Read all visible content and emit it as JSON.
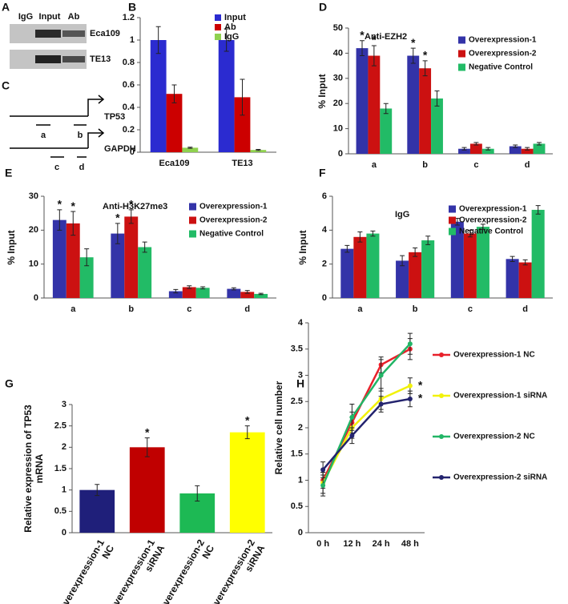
{
  "panel_a": {
    "label": "A",
    "columns": [
      "IgG",
      "Input",
      "Ab"
    ],
    "rows": [
      "Eca109",
      "TE13"
    ]
  },
  "panel_c": {
    "label": "C",
    "genes": [
      {
        "name": "TP53",
        "regions": [
          "a",
          "b"
        ]
      },
      {
        "name": "GAPDH",
        "regions": [
          "c",
          "d"
        ]
      }
    ]
  },
  "chart_data": [
    {
      "type": "bar",
      "panel": "B",
      "categories": [
        "Eca109",
        "TE13"
      ],
      "series": [
        {
          "name": "Input",
          "color": "#2b2bd0",
          "values": [
            1,
            1
          ],
          "errors": [
            0.12,
            0.1
          ]
        },
        {
          "name": "Ab",
          "color": "#cc0000",
          "values": [
            0.52,
            0.49
          ],
          "errors": [
            0.08,
            0.16
          ]
        },
        {
          "name": "IgG",
          "color": "#8fd14f",
          "values": [
            0.04,
            0.02
          ],
          "errors": [
            0.005,
            0.005
          ]
        }
      ],
      "ylim": [
        0,
        1.2
      ],
      "yticks": [
        0,
        0.2,
        0.4,
        0.6,
        0.8,
        1,
        1.2
      ],
      "legend": "upper right"
    },
    {
      "type": "bar",
      "panel": "D",
      "title": "Anti-EZH2",
      "ylabel": "% Input",
      "categories": [
        "a",
        "b",
        "c",
        "d"
      ],
      "series": [
        {
          "name": "Overexpression-1",
          "color": "#3333a8",
          "values": [
            42,
            39,
            2,
            3
          ],
          "errors": [
            3,
            3,
            0.5,
            0.5
          ],
          "significance": [
            "*",
            "*",
            null,
            null
          ]
        },
        {
          "name": "Overexpression-2",
          "color": "#cc1111",
          "values": [
            39,
            34,
            4,
            2
          ],
          "errors": [
            4,
            3,
            0.5,
            0.5
          ],
          "significance": [
            "*",
            "*",
            null,
            null
          ]
        },
        {
          "name": "Negative Control",
          "color": "#22bb66",
          "values": [
            18,
            22,
            2,
            4
          ],
          "errors": [
            2,
            3,
            0.5,
            0.5
          ]
        }
      ],
      "ylim": [
        0,
        50
      ],
      "yticks": [
        0,
        10,
        20,
        30,
        40,
        50
      ],
      "legend": "upper right"
    },
    {
      "type": "bar",
      "panel": "E",
      "title": "Anti-H3K27me3",
      "ylabel": "% Input",
      "categories": [
        "a",
        "b",
        "c",
        "d"
      ],
      "series": [
        {
          "name": "Overexpression-1",
          "color": "#3333a8",
          "values": [
            23,
            19,
            2,
            2.7
          ],
          "errors": [
            3,
            3,
            0.5,
            0.3
          ],
          "significance": [
            "*",
            "*",
            null,
            null
          ]
        },
        {
          "name": "Overexpression-2",
          "color": "#cc1111",
          "values": [
            22,
            24,
            3.2,
            1.8
          ],
          "errors": [
            3.5,
            2,
            0.4,
            0.4
          ],
          "significance": [
            "*",
            "*",
            null,
            null
          ]
        },
        {
          "name": "Negative Control",
          "color": "#22bb66",
          "values": [
            12,
            15,
            3,
            1.2
          ],
          "errors": [
            2.5,
            1.5,
            0.3,
            0.2
          ]
        }
      ],
      "ylim": [
        0,
        30
      ],
      "yticks": [
        0,
        10,
        20,
        30
      ],
      "legend": "upper right"
    },
    {
      "type": "bar",
      "panel": "F",
      "title": "IgG",
      "ylabel": "% Input",
      "categories": [
        "a",
        "b",
        "c",
        "d"
      ],
      "series": [
        {
          "name": "Overexpression-1",
          "color": "#3333a8",
          "values": [
            2.9,
            2.2,
            4.5,
            2.3
          ],
          "errors": [
            0.2,
            0.3,
            0.2,
            0.15
          ]
        },
        {
          "name": "Overexpression-2",
          "color": "#cc1111",
          "values": [
            3.6,
            2.7,
            3.8,
            2.1
          ],
          "errors": [
            0.3,
            0.25,
            0.2,
            0.15
          ]
        },
        {
          "name": "Negative Control",
          "color": "#22bb66",
          "values": [
            3.8,
            3.4,
            4.2,
            5.2
          ],
          "errors": [
            0.15,
            0.25,
            0.15,
            0.25
          ]
        }
      ],
      "ylim": [
        0,
        6
      ],
      "yticks": [
        0,
        2,
        4,
        6
      ],
      "legend": "upper right"
    },
    {
      "type": "bar",
      "panel": "G",
      "ylabel": "Relative expression of TP53 mRNA",
      "categories": [
        "Overexpression-1 NC",
        "Overexpression-1 siRNA",
        "Overexpression-2 NC",
        "Overexpression-2 siRNA"
      ],
      "values": [
        1,
        2,
        0.92,
        2.35
      ],
      "errors": [
        0.13,
        0.22,
        0.18,
        0.15
      ],
      "significance": [
        null,
        "*",
        null,
        "*"
      ],
      "colors": [
        "#1f1f7a",
        "#c00000",
        "#1db954",
        "#ffff00"
      ],
      "ylim": [
        0,
        3
      ],
      "yticks": [
        0,
        0.5,
        1,
        1.5,
        2,
        2.5,
        3
      ]
    },
    {
      "type": "line",
      "panel": "H",
      "ylabel": "Relative cell number",
      "categories": [
        "0 h",
        "12 h",
        "24 h",
        "48 h"
      ],
      "series": [
        {
          "name": "Overexpression-1 NC",
          "color": "#e8202a",
          "values": [
            1.0,
            2.1,
            3.2,
            3.5
          ],
          "errors": [
            0.15,
            0.2,
            0.15,
            0.2
          ]
        },
        {
          "name": "Overexpression-1 siRNA",
          "color": "#f2f20a",
          "values": [
            0.95,
            2.0,
            2.55,
            2.8
          ],
          "errors": [
            0.2,
            0.2,
            0.2,
            0.15
          ],
          "significance": [
            null,
            null,
            null,
            "*"
          ]
        },
        {
          "name": "Overexpression-2 NC",
          "color": "#22b566",
          "values": [
            0.9,
            2.2,
            3.0,
            3.6
          ],
          "errors": [
            0.2,
            0.25,
            0.3,
            0.2
          ]
        },
        {
          "name": "Overexpression-2 siRNA",
          "color": "#23236e",
          "values": [
            1.2,
            1.85,
            2.45,
            2.55
          ],
          "errors": [
            0.15,
            0.15,
            0.15,
            0.15
          ],
          "significance": [
            null,
            null,
            null,
            "*"
          ]
        }
      ],
      "ylim": [
        0,
        4
      ],
      "yticks": [
        0,
        0.5,
        1,
        1.5,
        2,
        2.5,
        3,
        3.5,
        4
      ],
      "legend": "right"
    }
  ]
}
